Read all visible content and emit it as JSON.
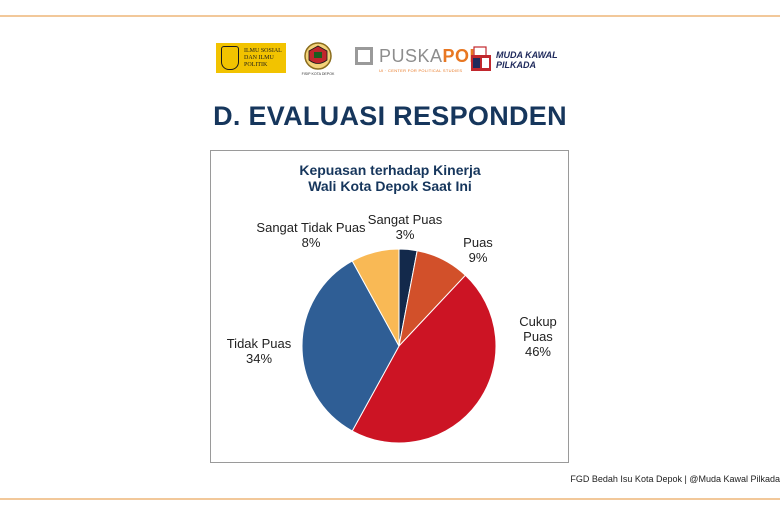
{
  "page": {
    "heading": "D. EVALUASI RESPONDEN",
    "footer": "FGD Bedah Isu Kota Depok | @Muda Kawal Pilkada"
  },
  "logos": {
    "fisip": "ILMU SOSIAL DAN ILMU POLITIK",
    "depok_caption": "FISIP KOTA DEPOK",
    "puskapol_prefix": "PUSKA",
    "puskapol_suffix": "POL",
    "puskapol_subtitle": "UI · CENTER FOR POLITICAL STUDIES",
    "mkp_line1": "MUDA KAWAL",
    "mkp_line2": "PILKADA"
  },
  "colors": {
    "heading": "#16365c",
    "rule": "#f2c89a"
  },
  "chart_data": {
    "type": "pie",
    "title_lines": [
      "Kepuasan terhadap Kinerja",
      "Wali Kota Depok Saat Ini"
    ],
    "start_at": "top",
    "direction": "clockwise",
    "slices": [
      {
        "name": "Sangat Puas",
        "value": 3,
        "label": "3%",
        "color": "#13294b"
      },
      {
        "name": "Puas",
        "value": 9,
        "label": "9%",
        "color": "#d2502a"
      },
      {
        "name": "Cukup Puas",
        "value": 46,
        "label": "46%",
        "color": "#cc1424"
      },
      {
        "name": "Tidak Puas",
        "value": 34,
        "label": "34%",
        "color": "#2f5e95"
      },
      {
        "name": "Sangat Tidak Puas",
        "value": 8,
        "label": "8%",
        "color": "#f9b955"
      }
    ]
  }
}
